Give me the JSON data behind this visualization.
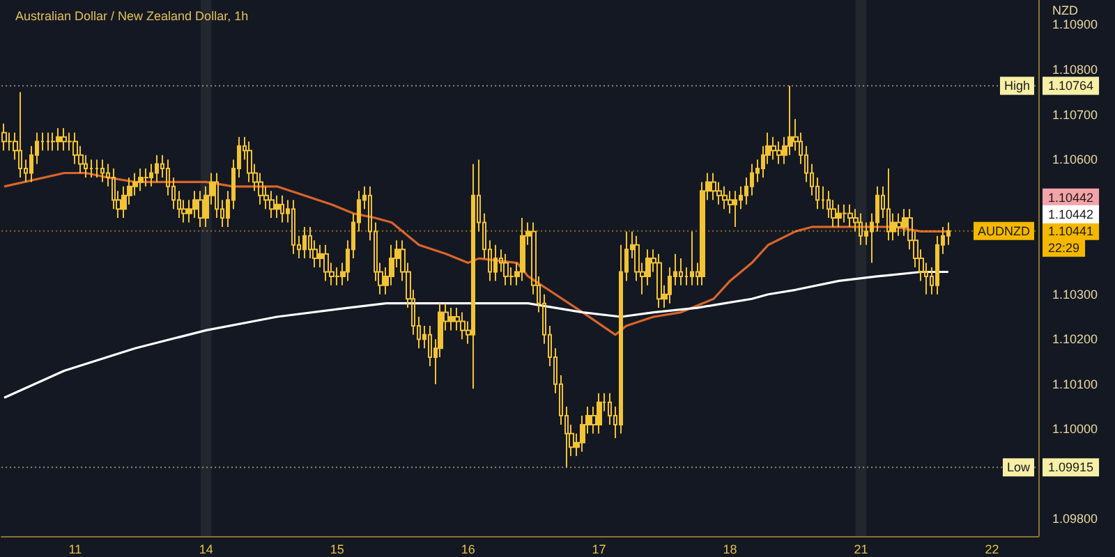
{
  "chart_data": {
    "type": "candlestick",
    "title": "Australian Dollar / New Zealand Dollar, 1h",
    "ylabel": "NZD",
    "color": "#f2c335",
    "marker": "none",
    "grid": false,
    "categories": [
      null,
      null,
      null,
      null,
      null,
      null,
      null,
      null,
      null,
      null,
      null,
      null,
      null,
      "11",
      null,
      null,
      null,
      null,
      null,
      null,
      null,
      null,
      null,
      null,
      null,
      null,
      null,
      null,
      null,
      null,
      null,
      null,
      null,
      null,
      null,
      null,
      null,
      "14",
      null,
      null,
      null,
      null,
      null,
      null,
      null,
      null,
      null,
      null,
      null,
      null,
      null,
      null,
      null,
      null,
      null,
      null,
      null,
      null,
      null,
      null,
      null,
      "15",
      null,
      null,
      null,
      null,
      null,
      null,
      null,
      null,
      null,
      null,
      null,
      null,
      null,
      null,
      null,
      null,
      null,
      null,
      null,
      null,
      null,
      null,
      null,
      "16",
      null,
      null,
      null,
      null,
      null,
      null,
      null,
      null,
      null,
      null,
      null,
      null,
      null,
      null,
      null,
      null,
      null,
      null,
      null,
      null,
      null,
      null,
      null,
      "17",
      null,
      null,
      null,
      null,
      null,
      null,
      null,
      null,
      null,
      null,
      null,
      null,
      null,
      null,
      null,
      null,
      null,
      null,
      null,
      null,
      null,
      null,
      null,
      "18",
      null,
      null,
      null,
      null,
      null,
      null,
      null,
      null,
      null,
      null,
      null,
      null,
      null,
      null,
      null,
      null,
      null,
      null,
      null,
      null,
      null,
      null,
      null,
      "21",
      null,
      null,
      null,
      null,
      null,
      null,
      null,
      null,
      null,
      null,
      null,
      null,
      null,
      null,
      null,
      null,
      null,
      null,
      null,
      null,
      null,
      null,
      null,
      "22",
      null,
      null,
      null,
      null,
      null,
      null,
      null,
      null
    ],
    "ylim": [
      1.09762,
      1.10955
    ],
    "yticks": [
      {
        "value": 1.098,
        "label": "1.09800"
      },
      {
        "value": 1.1,
        "label": "1.10000"
      },
      {
        "value": 1.101,
        "label": "1.10100"
      },
      {
        "value": 1.102,
        "label": "1.10200"
      },
      {
        "value": 1.103,
        "label": "1.10300"
      },
      {
        "value": 1.106,
        "label": "1.10600"
      },
      {
        "value": 1.107,
        "label": "1.10700"
      },
      {
        "value": 1.108,
        "label": "1.10800"
      },
      {
        "value": 1.109,
        "label": "1.10900"
      }
    ],
    "ohlc": [
      [
        1.1066,
        1.1068,
        1.1062,
        1.1064
      ],
      [
        1.1064,
        1.1066,
        1.1062,
        1.1064
      ],
      [
        1.1064,
        1.1066,
        1.106,
        1.1062
      ],
      [
        1.1062,
        1.1075,
        1.1056,
        1.1058
      ],
      [
        1.1058,
        1.106,
        1.1055,
        1.1057
      ],
      [
        1.1057,
        1.1063,
        1.1055,
        1.1061
      ],
      [
        1.1061,
        1.1066,
        1.1059,
        1.1064
      ],
      [
        1.1064,
        1.1066,
        1.1062,
        1.1064
      ],
      [
        1.1064,
        1.1066,
        1.1062,
        1.1064
      ],
      [
        1.1064,
        1.1066,
        1.1062,
        1.1064
      ],
      [
        1.1064,
        1.1067,
        1.1062,
        1.1065
      ],
      [
        1.1065,
        1.1067,
        1.1062,
        1.1064
      ],
      [
        1.1064,
        1.1066,
        1.1062,
        1.1064
      ],
      [
        1.1064,
        1.1066,
        1.1059,
        1.1061
      ],
      [
        1.1061,
        1.1063,
        1.1057,
        1.1059
      ],
      [
        1.1059,
        1.1061,
        1.1056,
        1.1058
      ],
      [
        1.1058,
        1.106,
        1.1056,
        1.1058
      ],
      [
        1.1058,
        1.106,
        1.1056,
        1.1058
      ],
      [
        1.1058,
        1.106,
        1.1055,
        1.1057
      ],
      [
        1.1057,
        1.1059,
        1.1054,
        1.1056
      ],
      [
        1.1056,
        1.1058,
        1.1049,
        1.1051
      ],
      [
        1.1051,
        1.1053,
        1.1047,
        1.1049
      ],
      [
        1.1049,
        1.1054,
        1.1047,
        1.1052
      ],
      [
        1.1052,
        1.1056,
        1.105,
        1.1054
      ],
      [
        1.1054,
        1.1057,
        1.1052,
        1.1055
      ],
      [
        1.1055,
        1.1058,
        1.1053,
        1.1056
      ],
      [
        1.1056,
        1.1058,
        1.1054,
        1.1056
      ],
      [
        1.1056,
        1.1059,
        1.1054,
        1.1057
      ],
      [
        1.1057,
        1.1061,
        1.1055,
        1.1059
      ],
      [
        1.1059,
        1.1061,
        1.1056,
        1.1058
      ],
      [
        1.1058,
        1.106,
        1.1052,
        1.1054
      ],
      [
        1.1054,
        1.1056,
        1.1049,
        1.1051
      ],
      [
        1.1051,
        1.1053,
        1.1047,
        1.1049
      ],
      [
        1.1049,
        1.1051,
        1.1046,
        1.1048
      ],
      [
        1.1048,
        1.1051,
        1.1046,
        1.1049
      ],
      [
        1.1049,
        1.1053,
        1.1047,
        1.1051
      ],
      [
        1.1051,
        1.1053,
        1.1045,
        1.1047
      ],
      [
        1.1047,
        1.1054,
        1.1045,
        1.1052
      ],
      [
        1.1052,
        1.1057,
        1.105,
        1.1055
      ],
      [
        1.1055,
        1.1057,
        1.1047,
        1.1049
      ],
      [
        1.1049,
        1.1051,
        1.1045,
        1.1047
      ],
      [
        1.1047,
        1.1053,
        1.1045,
        1.1051
      ],
      [
        1.1051,
        1.106,
        1.1049,
        1.1058
      ],
      [
        1.1058,
        1.1065,
        1.1056,
        1.1063
      ],
      [
        1.1063,
        1.1065,
        1.106,
        1.1062
      ],
      [
        1.1062,
        1.1064,
        1.1055,
        1.1057
      ],
      [
        1.1057,
        1.1059,
        1.1053,
        1.1055
      ],
      [
        1.1055,
        1.1057,
        1.105,
        1.1052
      ],
      [
        1.1052,
        1.1054,
        1.1049,
        1.1051
      ],
      [
        1.1051,
        1.1053,
        1.1047,
        1.1049
      ],
      [
        1.1049,
        1.1052,
        1.1047,
        1.105
      ],
      [
        1.105,
        1.1052,
        1.1046,
        1.1048
      ],
      [
        1.1048,
        1.1051,
        1.1046,
        1.1049
      ],
      [
        1.1049,
        1.1051,
        1.1039,
        1.1041
      ],
      [
        1.1041,
        1.1043,
        1.1038,
        1.104
      ],
      [
        1.104,
        1.1045,
        1.1038,
        1.1043
      ],
      [
        1.1043,
        1.1045,
        1.1038,
        1.104
      ],
      [
        1.104,
        1.1042,
        1.1036,
        1.1038
      ],
      [
        1.1038,
        1.1041,
        1.1036,
        1.1039
      ],
      [
        1.1039,
        1.1041,
        1.1033,
        1.1035
      ],
      [
        1.1035,
        1.1037,
        1.1032,
        1.1034
      ],
      [
        1.1034,
        1.1036,
        1.1032,
        1.1034
      ],
      [
        1.1034,
        1.1037,
        1.1032,
        1.1035
      ],
      [
        1.1035,
        1.1042,
        1.1033,
        1.104
      ],
      [
        1.104,
        1.1048,
        1.1038,
        1.1046
      ],
      [
        1.1046,
        1.1053,
        1.1044,
        1.1051
      ],
      [
        1.1051,
        1.1054,
        1.1049,
        1.1052
      ],
      [
        1.1052,
        1.1054,
        1.1042,
        1.1044
      ],
      [
        1.1044,
        1.1046,
        1.1033,
        1.1035
      ],
      [
        1.1035,
        1.1037,
        1.103,
        1.1032
      ],
      [
        1.1032,
        1.1036,
        1.103,
        1.1034
      ],
      [
        1.1034,
        1.1041,
        1.1032,
        1.1038
      ],
      [
        1.1038,
        1.1042,
        1.1036,
        1.104
      ],
      [
        1.104,
        1.1042,
        1.1033,
        1.1035
      ],
      [
        1.1035,
        1.1037,
        1.1027,
        1.1029
      ],
      [
        1.1029,
        1.1031,
        1.1021,
        1.1023
      ],
      [
        1.1023,
        1.1025,
        1.1018,
        1.102
      ],
      [
        1.102,
        1.1023,
        1.1018,
        1.1021
      ],
      [
        1.1021,
        1.1023,
        1.1014,
        1.1016
      ],
      [
        1.1016,
        1.102,
        1.101,
        1.1018
      ],
      [
        1.1018,
        1.1028,
        1.1016,
        1.1026
      ],
      [
        1.1026,
        1.1028,
        1.1022,
        1.1024
      ],
      [
        1.1024,
        1.1027,
        1.1022,
        1.1025
      ],
      [
        1.1025,
        1.1027,
        1.1022,
        1.1024
      ],
      [
        1.1024,
        1.1026,
        1.102,
        1.1022
      ],
      [
        1.1022,
        1.1024,
        1.1019,
        1.1021
      ],
      [
        1.1021,
        1.1059,
        1.1009,
        1.1052
      ],
      [
        1.1052,
        1.106,
        1.1044,
        1.1046
      ],
      [
        1.1046,
        1.1048,
        1.1038,
        1.104
      ],
      [
        1.104,
        1.1042,
        1.1033,
        1.1035
      ],
      [
        1.1035,
        1.1041,
        1.1033,
        1.1038
      ],
      [
        1.1038,
        1.104,
        1.1035,
        1.1037
      ],
      [
        1.1037,
        1.1039,
        1.1032,
        1.1034
      ],
      [
        1.1034,
        1.1036,
        1.1032,
        1.1034
      ],
      [
        1.1034,
        1.1037,
        1.1032,
        1.1035
      ],
      [
        1.1035,
        1.1047,
        1.1033,
        1.1043
      ],
      [
        1.1043,
        1.1046,
        1.1041,
        1.1044
      ],
      [
        1.1044,
        1.1046,
        1.103,
        1.1032
      ],
      [
        1.1032,
        1.1034,
        1.1026,
        1.1028
      ],
      [
        1.1028,
        1.103,
        1.1019,
        1.1021
      ],
      [
        1.1021,
        1.1023,
        1.1014,
        1.1016
      ],
      [
        1.1016,
        1.1018,
        1.1008,
        1.101
      ],
      [
        1.101,
        1.1012,
        1.1001,
        1.1003
      ],
      [
        1.1003,
        1.1005,
        1.09915,
        1.0999
      ],
      [
        1.0999,
        1.1001,
        1.0994,
        1.0996
      ],
      [
        1.0996,
        1.0999,
        1.0994,
        1.0997
      ],
      [
        1.0997,
        1.1003,
        1.0995,
        1.1001
      ],
      [
        1.1001,
        1.1005,
        1.0999,
        1.1003
      ],
      [
        1.1003,
        1.1005,
        1.0999,
        1.1001
      ],
      [
        1.1001,
        1.1008,
        1.0999,
        1.1006
      ],
      [
        1.1006,
        1.1008,
        1.1004,
        1.1006
      ],
      [
        1.1006,
        1.1008,
        1.1001,
        1.1003
      ],
      [
        1.1003,
        1.1005,
        1.0998,
        1.1001
      ],
      [
        1.1001,
        1.1041,
        1.0999,
        1.1035
      ],
      [
        1.1035,
        1.1044,
        1.1033,
        1.104
      ],
      [
        1.104,
        1.1044,
        1.1038,
        1.1041
      ],
      [
        1.1041,
        1.1043,
        1.1033,
        1.1035
      ],
      [
        1.1035,
        1.1037,
        1.103,
        1.1034
      ],
      [
        1.1034,
        1.104,
        1.1032,
        1.1038
      ],
      [
        1.1038,
        1.104,
        1.1035,
        1.1037
      ],
      [
        1.1037,
        1.1039,
        1.1027,
        1.1029
      ],
      [
        1.1029,
        1.1032,
        1.1027,
        1.103
      ],
      [
        1.103,
        1.1036,
        1.1028,
        1.1034
      ],
      [
        1.1034,
        1.1039,
        1.1032,
        1.1035
      ],
      [
        1.1035,
        1.1038,
        1.1032,
        1.1034
      ],
      [
        1.1034,
        1.1036,
        1.1032,
        1.1034
      ],
      [
        1.1034,
        1.1044,
        1.1032,
        1.1035
      ],
      [
        1.1035,
        1.1037,
        1.1032,
        1.1034
      ],
      [
        1.1034,
        1.1055,
        1.1032,
        1.1053
      ],
      [
        1.1053,
        1.1057,
        1.1051,
        1.1055
      ],
      [
        1.1055,
        1.1057,
        1.1051,
        1.1053
      ],
      [
        1.1053,
        1.1055,
        1.105,
        1.1052
      ],
      [
        1.1052,
        1.1054,
        1.1049,
        1.1051
      ],
      [
        1.1051,
        1.1053,
        1.1048,
        1.105
      ],
      [
        1.105,
        1.1053,
        1.1045,
        1.1051
      ],
      [
        1.1051,
        1.1054,
        1.1049,
        1.1052
      ],
      [
        1.1052,
        1.1056,
        1.105,
        1.1054
      ],
      [
        1.1054,
        1.1059,
        1.1052,
        1.1057
      ],
      [
        1.1057,
        1.106,
        1.1055,
        1.1058
      ],
      [
        1.1058,
        1.1063,
        1.1056,
        1.1061
      ],
      [
        1.1061,
        1.1066,
        1.1059,
        1.1063
      ],
      [
        1.1063,
        1.1065,
        1.106,
        1.1062
      ],
      [
        1.1062,
        1.1064,
        1.1059,
        1.1061
      ],
      [
        1.1061,
        1.1065,
        1.1059,
        1.1063
      ],
      [
        1.1063,
        1.10764,
        1.1061,
        1.1065
      ],
      [
        1.1065,
        1.1069,
        1.1062,
        1.1064
      ],
      [
        1.1064,
        1.1066,
        1.1059,
        1.1061
      ],
      [
        1.1061,
        1.1063,
        1.1055,
        1.1057
      ],
      [
        1.1057,
        1.1059,
        1.1052,
        1.1054
      ],
      [
        1.1054,
        1.1056,
        1.1049,
        1.1051
      ],
      [
        1.1051,
        1.1054,
        1.1049,
        1.1051
      ],
      [
        1.1051,
        1.1053,
        1.1047,
        1.1049
      ],
      [
        1.1049,
        1.1051,
        1.1045,
        1.1047
      ],
      [
        1.1047,
        1.105,
        1.1045,
        1.1048
      ],
      [
        1.1048,
        1.105,
        1.1046,
        1.1048
      ],
      [
        1.1048,
        1.105,
        1.1045,
        1.1047
      ],
      [
        1.1047,
        1.1049,
        1.1044,
        1.1046
      ],
      [
        1.1046,
        1.1048,
        1.1041,
        1.1043
      ],
      [
        1.1043,
        1.1046,
        1.1041,
        1.1044
      ],
      [
        1.1044,
        1.1048,
        1.1037,
        1.1046
      ],
      [
        1.1046,
        1.1054,
        1.1044,
        1.1052
      ],
      [
        1.1052,
        1.1054,
        1.1047,
        1.1049
      ],
      [
        1.1049,
        1.1058,
        1.1042,
        1.1044
      ],
      [
        1.1044,
        1.1048,
        1.1042,
        1.1046
      ],
      [
        1.1046,
        1.1048,
        1.1043,
        1.1045
      ],
      [
        1.1045,
        1.1049,
        1.1043,
        1.1047
      ],
      [
        1.1047,
        1.1049,
        1.104,
        1.1042
      ],
      [
        1.1042,
        1.1044,
        1.1036,
        1.1038
      ],
      [
        1.1038,
        1.104,
        1.1033,
        1.1035
      ],
      [
        1.1035,
        1.1037,
        1.103,
        1.1034
      ],
      [
        1.1034,
        1.1036,
        1.103,
        1.1032
      ],
      [
        1.1032,
        1.1043,
        1.103,
        1.1041
      ],
      [
        1.1041,
        1.1045,
        1.1039,
        1.1043
      ],
      [
        1.1043,
        1.1046,
        1.1041,
        1.10441
      ],
      null,
      null,
      null,
      null,
      null,
      null,
      null,
      null,
      null,
      null,
      null,
      null,
      null,
      null,
      null,
      null
    ],
    "series": [
      {
        "type": "line",
        "color": "#d9652b",
        "values": [
          1.1054,
          null,
          null,
          null,
          null,
          null,
          null,
          null,
          null,
          null,
          null,
          1.1057,
          null,
          null,
          null,
          1.1057,
          null,
          null,
          null,
          1.1056,
          null,
          null,
          null,
          null,
          1.1055,
          null,
          null,
          null,
          null,
          null,
          null,
          null,
          null,
          null,
          null,
          null,
          null,
          1.1055,
          null,
          null,
          null,
          null,
          1.1054,
          null,
          null,
          null,
          null,
          null,
          null,
          null,
          1.1054,
          null,
          null,
          null,
          null,
          1.1052,
          null,
          null,
          null,
          null,
          1.105,
          null,
          null,
          null,
          1.1048,
          null,
          null,
          null,
          1.1047,
          null,
          null,
          1.1046,
          null,
          null,
          null,
          null,
          1.1041,
          null,
          null,
          null,
          null,
          1.1039,
          null,
          null,
          null,
          1.1037,
          null,
          1.1038,
          null,
          null,
          null,
          null,
          null,
          null,
          1.1037,
          null,
          1.1034,
          null,
          null,
          null,
          null,
          1.103,
          null,
          null,
          null,
          null,
          1.1026,
          null,
          null,
          null,
          null,
          null,
          1.1021,
          null,
          1.1023,
          null,
          null,
          null,
          null,
          1.1025,
          null,
          null,
          null,
          null,
          1.1026,
          null,
          null,
          null,
          null,
          null,
          1.1029,
          null,
          null,
          1.1033,
          null,
          null,
          null,
          1.1037,
          null,
          null,
          1.1041,
          null,
          null,
          null,
          null,
          1.1044,
          null,
          null,
          1.1045,
          null,
          null,
          null,
          null,
          1.1045,
          null,
          null,
          null,
          null,
          1.1045,
          null,
          null,
          null,
          null,
          1.1045,
          null,
          null,
          null,
          null,
          1.1044,
          null,
          null,
          null,
          null,
          1.1044,
          null,
          null,
          null,
          null,
          null,
          null,
          null,
          null,
          null,
          null,
          null,
          null,
          null,
          null,
          null,
          null
        ]
      },
      {
        "type": "line",
        "color": "#ffffff",
        "values": [
          1.1007,
          null,
          null,
          null,
          null,
          null,
          null,
          null,
          null,
          null,
          null,
          1.1013,
          null,
          null,
          null,
          null,
          null,
          null,
          null,
          null,
          null,
          null,
          null,
          null,
          1.1018,
          null,
          null,
          null,
          null,
          null,
          null,
          null,
          null,
          null,
          null,
          null,
          null,
          1.1022,
          null,
          null,
          null,
          null,
          null,
          null,
          null,
          null,
          null,
          null,
          null,
          null,
          1.1025,
          null,
          null,
          null,
          null,
          null,
          null,
          null,
          null,
          null,
          null,
          null,
          null,
          1.1027,
          null,
          null,
          null,
          null,
          null,
          null,
          1.1028,
          null,
          null,
          null,
          null,
          null,
          null,
          null,
          null,
          null,
          null,
          null,
          null,
          null,
          null,
          1.1028,
          null,
          null,
          1.1028,
          null,
          null,
          null,
          null,
          null,
          null,
          null,
          1.1028,
          null,
          null,
          null,
          null,
          1.1027,
          null,
          null,
          null,
          null,
          1.1026,
          null,
          null,
          null,
          null,
          null,
          null,
          1.1025,
          null,
          null,
          null,
          null,
          null,
          1.1026,
          null,
          null,
          null,
          null,
          null,
          null,
          null,
          1.1027,
          null,
          null,
          null,
          null,
          1.1028,
          null,
          null,
          null,
          null,
          1.1029,
          null,
          null,
          1.103,
          null,
          null,
          null,
          null,
          1.1031,
          null,
          null,
          null,
          null,
          null,
          null,
          null,
          1.1033,
          null,
          null,
          null,
          null,
          null,
          null,
          1.1034,
          null,
          null,
          null,
          null,
          null,
          null,
          null,
          1.1035,
          null,
          null,
          null,
          null,
          1.1035,
          null,
          null,
          null,
          null,
          null,
          null,
          null,
          null,
          null,
          null,
          null,
          null,
          null,
          null,
          null,
          null
        ]
      }
    ],
    "bands": [
      {
        "axis": "x",
        "from": "14",
        "to": "14",
        "color": "#22262f"
      },
      {
        "axis": "x",
        "from": "21",
        "to": "21",
        "color": "#22262f"
      }
    ],
    "ref_lines": [
      {
        "axis": "y",
        "value": 1.10764,
        "label": "High",
        "color": "#f6efa6",
        "line_style": "dotted"
      },
      {
        "axis": "y",
        "value": 1.09915,
        "label": "Low",
        "color": "#f6efa6",
        "line_style": "dotted"
      },
      {
        "axis": "y",
        "value": 1.10441,
        "label": "AUDNZD",
        "color": "#f5b800",
        "line_style": "dotted"
      }
    ],
    "annotations": [
      {
        "text": "1.10764",
        "y": 1.10764
      },
      {
        "text": "1.09915",
        "y": 1.09915
      },
      {
        "text": "1.10441",
        "y": 1.10441
      },
      "1.10442",
      "1.10442",
      "22:29"
    ]
  }
}
